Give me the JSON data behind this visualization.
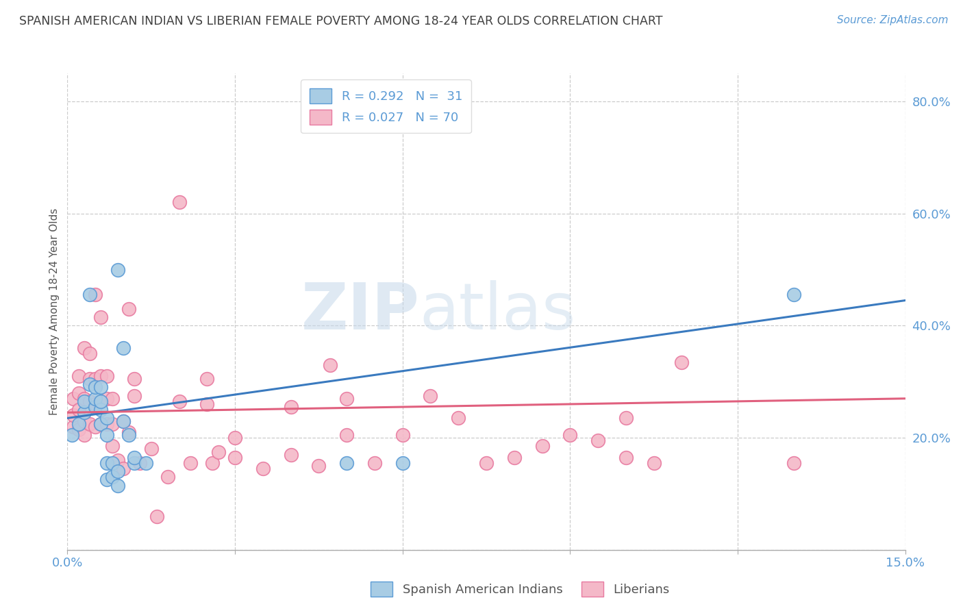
{
  "title": "SPANISH AMERICAN INDIAN VS LIBERIAN FEMALE POVERTY AMONG 18-24 YEAR OLDS CORRELATION CHART",
  "source": "Source: ZipAtlas.com",
  "ylabel": "Female Poverty Among 18-24 Year Olds",
  "xlim": [
    0.0,
    0.15
  ],
  "ylim": [
    0.0,
    0.85
  ],
  "x_ticks": [
    0.0,
    0.03,
    0.06,
    0.09,
    0.12,
    0.15
  ],
  "y_tick_labels_right": [
    "",
    "20.0%",
    "40.0%",
    "60.0%",
    "80.0%"
  ],
  "y_ticks_right": [
    0.0,
    0.2,
    0.4,
    0.6,
    0.8
  ],
  "legend_R1": "R = 0.292",
  "legend_N1": "N =  31",
  "legend_R2": "R = 0.027",
  "legend_N2": "N = 70",
  "color_blue": "#a8cce4",
  "color_pink": "#f4b8c8",
  "color_blue_edge": "#5b9bd5",
  "color_pink_edge": "#e87aa0",
  "color_blue_line": "#3a7abf",
  "color_pink_line": "#e0607e",
  "color_title": "#404040",
  "color_source": "#5b9bd5",
  "color_axis_label": "#5b9bd5",
  "label_spanish": "Spanish American Indians",
  "label_liberian": "Liberians",
  "blue_x": [
    0.0008,
    0.002,
    0.003,
    0.003,
    0.004,
    0.004,
    0.005,
    0.005,
    0.005,
    0.006,
    0.006,
    0.006,
    0.006,
    0.007,
    0.007,
    0.007,
    0.007,
    0.008,
    0.008,
    0.009,
    0.009,
    0.009,
    0.01,
    0.01,
    0.011,
    0.012,
    0.012,
    0.014,
    0.05,
    0.06,
    0.13
  ],
  "blue_y": [
    0.205,
    0.225,
    0.245,
    0.265,
    0.295,
    0.455,
    0.255,
    0.27,
    0.29,
    0.225,
    0.25,
    0.265,
    0.29,
    0.125,
    0.155,
    0.205,
    0.235,
    0.13,
    0.155,
    0.115,
    0.14,
    0.5,
    0.23,
    0.36,
    0.205,
    0.155,
    0.165,
    0.155,
    0.155,
    0.155,
    0.455
  ],
  "pink_x": [
    0.001,
    0.001,
    0.001,
    0.002,
    0.002,
    0.002,
    0.002,
    0.003,
    0.003,
    0.003,
    0.003,
    0.004,
    0.004,
    0.004,
    0.004,
    0.005,
    0.005,
    0.005,
    0.005,
    0.006,
    0.006,
    0.006,
    0.006,
    0.007,
    0.007,
    0.007,
    0.008,
    0.008,
    0.008,
    0.009,
    0.01,
    0.01,
    0.011,
    0.011,
    0.012,
    0.012,
    0.013,
    0.015,
    0.016,
    0.018,
    0.02,
    0.02,
    0.022,
    0.025,
    0.025,
    0.026,
    0.027,
    0.03,
    0.03,
    0.035,
    0.04,
    0.04,
    0.045,
    0.047,
    0.05,
    0.05,
    0.055,
    0.06,
    0.065,
    0.07,
    0.075,
    0.08,
    0.085,
    0.09,
    0.095,
    0.1,
    0.1,
    0.105,
    0.11,
    0.13
  ],
  "pink_y": [
    0.22,
    0.24,
    0.27,
    0.215,
    0.25,
    0.28,
    0.31,
    0.205,
    0.23,
    0.27,
    0.36,
    0.225,
    0.265,
    0.305,
    0.35,
    0.22,
    0.26,
    0.305,
    0.455,
    0.225,
    0.265,
    0.31,
    0.415,
    0.225,
    0.27,
    0.31,
    0.185,
    0.225,
    0.27,
    0.16,
    0.145,
    0.23,
    0.21,
    0.43,
    0.275,
    0.305,
    0.155,
    0.18,
    0.06,
    0.13,
    0.265,
    0.62,
    0.155,
    0.26,
    0.305,
    0.155,
    0.175,
    0.165,
    0.2,
    0.145,
    0.255,
    0.17,
    0.15,
    0.33,
    0.205,
    0.27,
    0.155,
    0.205,
    0.275,
    0.235,
    0.155,
    0.165,
    0.185,
    0.205,
    0.195,
    0.165,
    0.235,
    0.155,
    0.335,
    0.155
  ],
  "blue_trend_x": [
    0.0,
    0.15
  ],
  "blue_trend_y": [
    0.235,
    0.445
  ],
  "pink_trend_x": [
    0.0,
    0.15
  ],
  "pink_trend_y": [
    0.245,
    0.27
  ]
}
